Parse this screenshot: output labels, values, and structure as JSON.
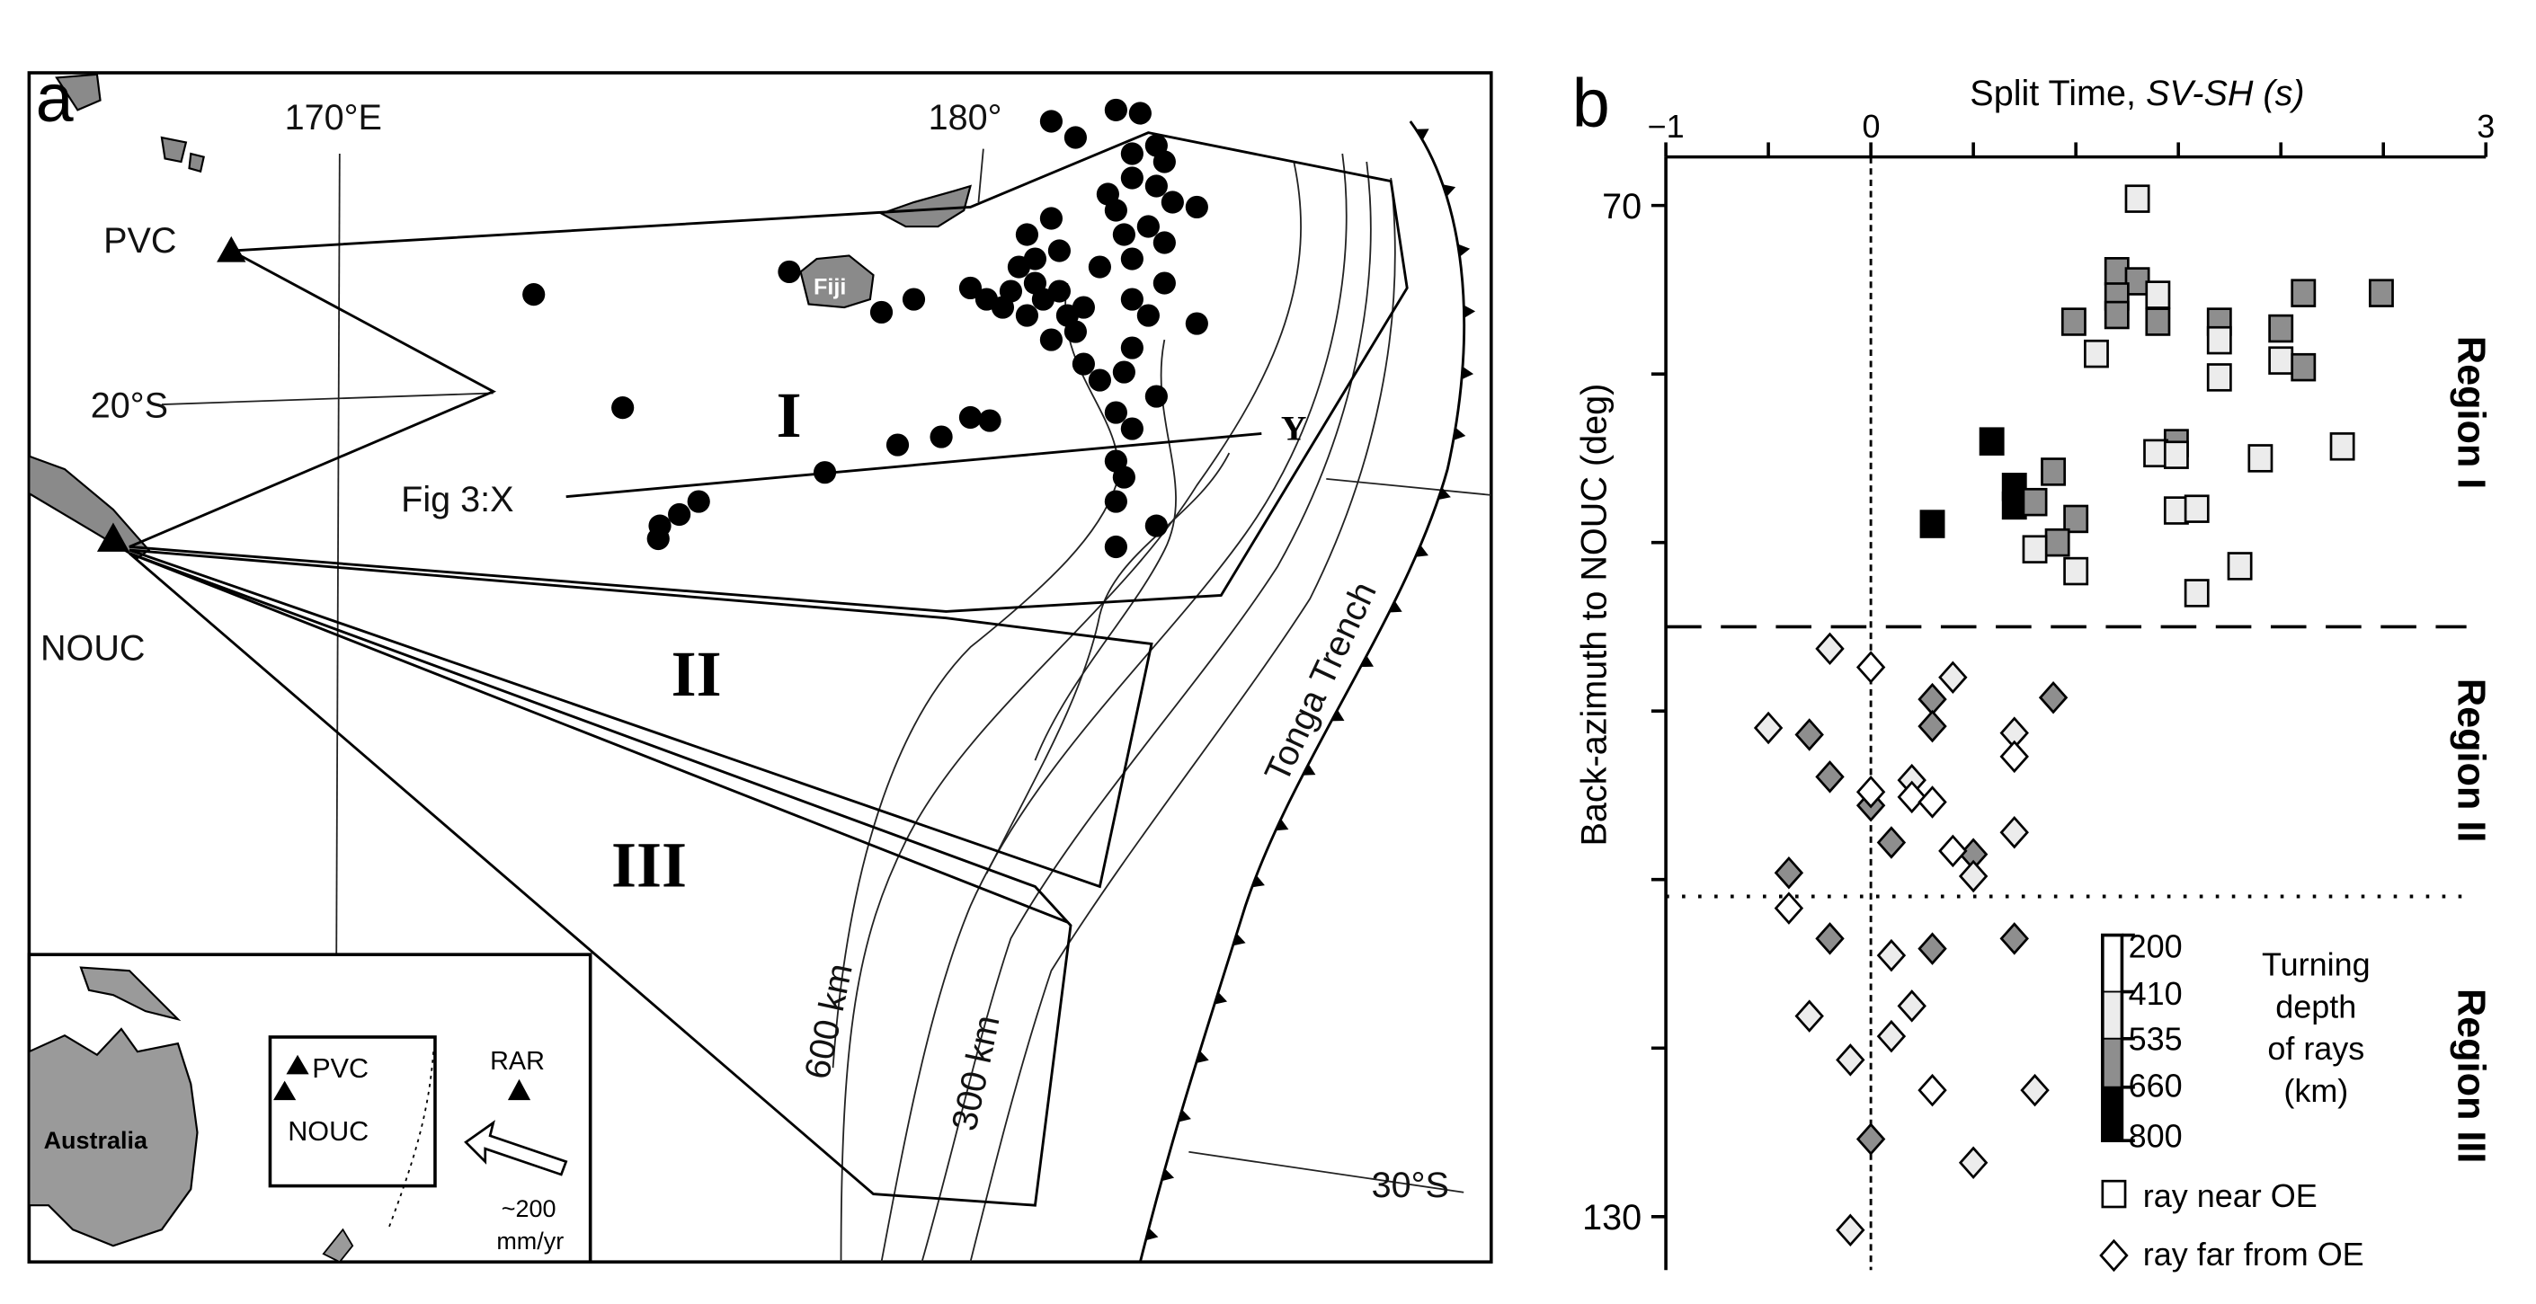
{
  "panel_a": {
    "panel_label": "a",
    "lon_170": "170°E",
    "lon_180": "180°",
    "lat_20": "20°S",
    "lat_30": "30°S",
    "station_pvc": "PVC",
    "station_nouc": "NOUC",
    "profile_x": "Fig 3:X",
    "profile_y": "Y",
    "region_1": "I",
    "region_2": "II",
    "region_3": "III",
    "fiji": "Fiji",
    "trench": "Tonga Trench",
    "contour_600": "600 km",
    "contour_300": "300 km",
    "inset": {
      "australia": "Australia",
      "pvc": "PVC",
      "nouc": "NOUC",
      "rar": "RAR",
      "rate_value": "~200",
      "rate_unit": "mm/yr"
    }
  },
  "chart_data": {
    "type": "scatter",
    "panel_label": "b",
    "title_plain": "Split Time, ",
    "title_italic": "SV-SH (s)",
    "xlabel": "Split Time, SV-SH (s)",
    "ylabel": "Back-azimuth to NOUC (deg)",
    "xlim": [
      -1,
      3
    ],
    "ylim": [
      130,
      70
    ],
    "x_tick_labels": [
      "−1",
      "0",
      "3"
    ],
    "y_tick_labels": [
      "70",
      "130"
    ],
    "region_boundaries": [
      {
        "y": 95,
        "style": "dashed"
      },
      {
        "y": 111,
        "style": "dotted"
      }
    ],
    "regions": [
      "Region I",
      "Region II",
      "Region III"
    ],
    "depth_colors": {
      "200-410": "#ffffff",
      "410-535": "#ececec",
      "535-660": "#8e8e8e",
      "660-800": "#000000"
    },
    "legend": {
      "depth_ticks": [
        "200",
        "410",
        "535",
        "660",
        "800"
      ],
      "depth_title": [
        "Turning",
        "depth",
        "of rays",
        "(km)"
      ],
      "near": "ray near OE",
      "far": "ray far from OE"
    },
    "series": [
      {
        "name": "ray near OE",
        "marker": "square",
        "points": [
          {
            "x": 1.3,
            "y": 69.6,
            "d": "410-535"
          },
          {
            "x": 1.2,
            "y": 73.9,
            "d": "535-660"
          },
          {
            "x": 1.3,
            "y": 74.5,
            "d": "535-660"
          },
          {
            "x": 1.4,
            "y": 75.3,
            "d": "410-535"
          },
          {
            "x": 1.2,
            "y": 75.4,
            "d": "535-660"
          },
          {
            "x": 2.11,
            "y": 75.2,
            "d": "535-660"
          },
          {
            "x": 2.49,
            "y": 75.2,
            "d": "535-660"
          },
          {
            "x": 0.99,
            "y": 76.9,
            "d": "535-660"
          },
          {
            "x": 1.2,
            "y": 76.5,
            "d": "535-660"
          },
          {
            "x": 1.4,
            "y": 76.9,
            "d": "535-660"
          },
          {
            "x": 1.7,
            "y": 76.9,
            "d": "535-660"
          },
          {
            "x": 1.7,
            "y": 78.0,
            "d": "410-535"
          },
          {
            "x": 2.0,
            "y": 77.3,
            "d": "535-660"
          },
          {
            "x": 1.1,
            "y": 78.8,
            "d": "410-535"
          },
          {
            "x": 2.0,
            "y": 79.2,
            "d": "410-535"
          },
          {
            "x": 2.11,
            "y": 79.6,
            "d": "535-660"
          },
          {
            "x": 1.7,
            "y": 80.2,
            "d": "410-535"
          },
          {
            "x": 0.59,
            "y": 84.0,
            "d": "660-800"
          },
          {
            "x": 1.49,
            "y": 84.1,
            "d": "535-660"
          },
          {
            "x": 1.39,
            "y": 84.7,
            "d": "410-535"
          },
          {
            "x": 1.49,
            "y": 84.8,
            "d": "410-535"
          },
          {
            "x": 1.9,
            "y": 85.0,
            "d": "410-535"
          },
          {
            "x": 2.3,
            "y": 84.3,
            "d": "410-535"
          },
          {
            "x": 0.89,
            "y": 85.8,
            "d": "535-660"
          },
          {
            "x": 0.7,
            "y": 86.7,
            "d": "660-800"
          },
          {
            "x": 0.7,
            "y": 87.8,
            "d": "660-800"
          },
          {
            "x": 0.8,
            "y": 87.6,
            "d": "535-660"
          },
          {
            "x": 1.49,
            "y": 88.1,
            "d": "410-535"
          },
          {
            "x": 1.59,
            "y": 88.0,
            "d": "410-535"
          },
          {
            "x": 0.3,
            "y": 88.9,
            "d": "660-800"
          },
          {
            "x": 1.0,
            "y": 88.6,
            "d": "535-660"
          },
          {
            "x": 0.91,
            "y": 90.0,
            "d": "535-660"
          },
          {
            "x": 0.8,
            "y": 90.4,
            "d": "410-535"
          },
          {
            "x": 1.0,
            "y": 91.7,
            "d": "410-535"
          },
          {
            "x": 1.8,
            "y": 91.4,
            "d": "410-535"
          },
          {
            "x": 1.59,
            "y": 93.0,
            "d": "410-535"
          }
        ]
      },
      {
        "name": "ray far from OE",
        "marker": "diamond",
        "points": [
          {
            "x": -0.2,
            "y": 96.3,
            "d": "410-535"
          },
          {
            "x": 0.0,
            "y": 97.4,
            "d": "200-410"
          },
          {
            "x": 0.4,
            "y": 98.0,
            "d": "410-535"
          },
          {
            "x": 0.3,
            "y": 99.3,
            "d": "535-660"
          },
          {
            "x": 0.89,
            "y": 99.2,
            "d": "535-660"
          },
          {
            "x": -0.5,
            "y": 101.0,
            "d": "410-535"
          },
          {
            "x": -0.3,
            "y": 101.4,
            "d": "535-660"
          },
          {
            "x": 0.3,
            "y": 100.9,
            "d": "535-660"
          },
          {
            "x": 0.7,
            "y": 101.3,
            "d": "410-535"
          },
          {
            "x": 0.7,
            "y": 102.7,
            "d": "200-410"
          },
          {
            "x": -0.2,
            "y": 103.9,
            "d": "535-660"
          },
          {
            "x": 0.2,
            "y": 104.1,
            "d": "410-535"
          },
          {
            "x": 0.0,
            "y": 105.6,
            "d": "535-660"
          },
          {
            "x": 0.0,
            "y": 104.8,
            "d": "200-410"
          },
          {
            "x": 0.2,
            "y": 105.1,
            "d": "200-410"
          },
          {
            "x": 0.3,
            "y": 105.4,
            "d": "200-410"
          },
          {
            "x": 0.7,
            "y": 107.2,
            "d": "410-535"
          },
          {
            "x": 0.1,
            "y": 107.8,
            "d": "535-660"
          },
          {
            "x": 0.5,
            "y": 108.5,
            "d": "535-660"
          },
          {
            "x": 0.4,
            "y": 108.3,
            "d": "200-410"
          },
          {
            "x": 0.5,
            "y": 109.8,
            "d": "410-535"
          },
          {
            "x": -0.4,
            "y": 109.6,
            "d": "535-660"
          },
          {
            "x": -0.4,
            "y": 111.7,
            "d": "200-410"
          },
          {
            "x": -0.2,
            "y": 113.5,
            "d": "535-660"
          },
          {
            "x": 0.1,
            "y": 114.5,
            "d": "410-535"
          },
          {
            "x": 0.3,
            "y": 114.1,
            "d": "535-660"
          },
          {
            "x": 0.7,
            "y": 113.5,
            "d": "535-660"
          },
          {
            "x": 0.2,
            "y": 117.5,
            "d": "410-535"
          },
          {
            "x": -0.3,
            "y": 118.1,
            "d": "410-535"
          },
          {
            "x": 0.1,
            "y": 119.3,
            "d": "410-535"
          },
          {
            "x": -0.1,
            "y": 120.7,
            "d": "410-535"
          },
          {
            "x": 0.3,
            "y": 122.5,
            "d": "200-410"
          },
          {
            "x": 0.8,
            "y": 122.5,
            "d": "410-535"
          },
          {
            "x": 0.0,
            "y": 125.4,
            "d": "535-660"
          },
          {
            "x": 0.5,
            "y": 126.8,
            "d": "410-535"
          },
          {
            "x": -0.1,
            "y": 130.8,
            "d": "410-535"
          }
        ]
      }
    ]
  }
}
